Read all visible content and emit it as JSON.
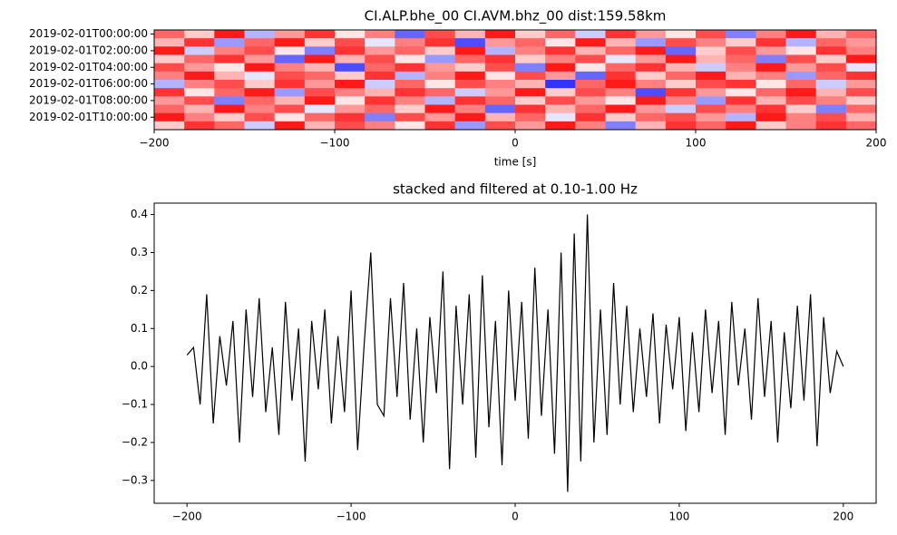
{
  "chart_data": [
    {
      "type": "heatmap",
      "title": "CI.ALP.bhe_00 CI.AVM.bhz_00  dist:159.58km",
      "xlabel": "time [s]",
      "xlim": [
        -200,
        200
      ],
      "xticks": [
        {
          "value": -200,
          "label": "−200"
        },
        {
          "value": -100,
          "label": "−100"
        },
        0,
        100,
        200
      ],
      "ylim": [
        11.5,
        -0.5
      ],
      "yticks": [
        {
          "value": 0,
          "label": "2019-02-01T00:00:00"
        },
        {
          "value": 2,
          "label": "2019-02-01T02:00:00"
        },
        {
          "value": 4,
          "label": "2019-02-01T04:00:00"
        },
        {
          "value": 6,
          "label": "2019-02-01T06:00:00"
        },
        {
          "value": 8,
          "label": "2019-02-01T08:00:00"
        },
        {
          "value": 10,
          "label": "2019-02-01T10:00:00"
        }
      ],
      "colormap": "bwr",
      "clim": [
        -1,
        1
      ],
      "z": [
        [
          0.6,
          0.2,
          0.9,
          -0.3,
          0.4,
          0.8,
          0.1,
          0.5,
          -0.6,
          0.7,
          0.3,
          0.9,
          0.2,
          0.6,
          -0.2,
          0.8,
          0.4,
          0.1,
          0.7,
          -0.5,
          0.5,
          0.9,
          0.3,
          0.6
        ],
        [
          0.3,
          0.8,
          -0.4,
          0.6,
          0.9,
          0.2,
          0.7,
          -0.1,
          0.5,
          0.8,
          -0.7,
          0.4,
          0.6,
          0.1,
          0.9,
          0.3,
          -0.4,
          0.7,
          0.5,
          0.2,
          0.8,
          -0.3,
          0.6,
          0.4
        ],
        [
          0.9,
          -0.2,
          0.5,
          0.7,
          0.1,
          -0.5,
          0.8,
          0.4,
          0.6,
          0.2,
          0.9,
          -0.3,
          0.5,
          0.8,
          0.3,
          0.6,
          0.9,
          -0.6,
          0.2,
          0.7,
          0.4,
          0.1,
          0.8,
          0.5
        ],
        [
          0.2,
          0.6,
          0.8,
          0.4,
          -0.6,
          0.9,
          0.3,
          0.7,
          0.1,
          -0.4,
          0.6,
          0.8,
          0.2,
          0.5,
          0.7,
          -0.1,
          0.4,
          0.9,
          0.3,
          0.6,
          -0.5,
          0.7,
          0.2,
          0.9
        ],
        [
          0.7,
          0.4,
          0.1,
          0.9,
          0.5,
          0.3,
          -0.7,
          0.6,
          0.8,
          0.4,
          0.2,
          0.7,
          -0.5,
          0.9,
          0.1,
          0.6,
          0.8,
          0.3,
          -0.2,
          0.5,
          0.9,
          0.4,
          0.7,
          -0.1
        ],
        [
          0.5,
          0.9,
          0.3,
          -0.1,
          0.7,
          0.6,
          0.2,
          0.8,
          -0.3,
          0.5,
          0.9,
          0.1,
          0.7,
          0.4,
          -0.6,
          0.8,
          0.2,
          0.6,
          0.9,
          0.3,
          0.5,
          -0.4,
          0.6,
          0.8
        ],
        [
          -0.3,
          0.5,
          0.7,
          0.2,
          0.8,
          0.4,
          0.9,
          -0.2,
          0.6,
          0.1,
          0.7,
          0.5,
          0.3,
          -0.8,
          0.6,
          0.9,
          0.5,
          0.2,
          0.7,
          0.8,
          0.1,
          0.6,
          -0.2,
          0.4
        ],
        [
          0.8,
          0.1,
          0.6,
          0.9,
          -0.4,
          0.7,
          0.5,
          0.3,
          0.8,
          0.6,
          -0.2,
          0.4,
          0.9,
          0.2,
          0.7,
          0.5,
          -0.7,
          0.8,
          0.4,
          0.1,
          0.6,
          0.9,
          0.3,
          0.7
        ],
        [
          0.4,
          0.7,
          -0.5,
          0.6,
          0.3,
          0.9,
          0.1,
          0.8,
          0.5,
          -0.3,
          0.8,
          0.6,
          0.2,
          0.7,
          0.4,
          0.1,
          0.9,
          0.5,
          -0.4,
          0.8,
          0.3,
          0.7,
          0.5,
          0.2
        ],
        [
          0.6,
          0.3,
          0.9,
          0.5,
          0.7,
          -0.1,
          0.4,
          0.6,
          0.2,
          0.9,
          0.5,
          -0.6,
          0.8,
          0.3,
          0.6,
          0.9,
          0.4,
          -0.2,
          0.7,
          0.5,
          0.8,
          0.2,
          -0.5,
          0.6
        ],
        [
          0.9,
          0.5,
          0.2,
          0.7,
          0.1,
          0.6,
          0.8,
          -0.5,
          0.7,
          0.4,
          0.9,
          0.3,
          0.6,
          -0.1,
          0.8,
          0.2,
          0.6,
          0.7,
          0.4,
          -0.3,
          0.9,
          0.5,
          0.7,
          0.3
        ],
        [
          0.2,
          0.8,
          0.6,
          -0.2,
          0.9,
          0.3,
          0.7,
          0.5,
          0.1,
          0.8,
          -0.4,
          0.7,
          0.4,
          0.9,
          0.5,
          -0.5,
          0.3,
          0.8,
          0.6,
          0.9,
          0.2,
          0.5,
          0.8,
          0.6
        ]
      ]
    },
    {
      "type": "line",
      "title": "stacked and filtered at 0.10-1.00 Hz",
      "xlim": [
        -220,
        220
      ],
      "xticks": [
        {
          "value": -200,
          "label": "−200"
        },
        {
          "value": -100,
          "label": "−100"
        },
        0,
        100,
        200
      ],
      "ylim": [
        -0.36,
        0.43
      ],
      "yticks": [
        {
          "value": -0.3,
          "label": "−0.3"
        },
        {
          "value": -0.2,
          "label": "−0.2"
        },
        {
          "value": -0.1,
          "label": "−0.1"
        },
        {
          "value": 0,
          "label": "0.0"
        },
        0.1,
        0.2,
        0.3,
        0.4
      ],
      "x": [
        -200,
        -196,
        -192,
        -188,
        -184,
        -180,
        -176,
        -172,
        -168,
        -164,
        -160,
        -156,
        -152,
        -148,
        -144,
        -140,
        -136,
        -132,
        -128,
        -124,
        -120,
        -116,
        -112,
        -108,
        -104,
        -100,
        -96,
        -92,
        -88,
        -84,
        -80,
        -76,
        -72,
        -68,
        -64,
        -60,
        -56,
        -52,
        -48,
        -44,
        -40,
        -36,
        -32,
        -28,
        -24,
        -20,
        -16,
        -12,
        -8,
        -4,
        0,
        4,
        8,
        12,
        16,
        20,
        24,
        28,
        32,
        36,
        40,
        44,
        48,
        52,
        56,
        60,
        64,
        68,
        72,
        76,
        80,
        84,
        88,
        92,
        96,
        100,
        104,
        108,
        112,
        116,
        120,
        124,
        128,
        132,
        136,
        140,
        144,
        148,
        152,
        156,
        160,
        164,
        168,
        172,
        176,
        180,
        184,
        188,
        192,
        196,
        200
      ],
      "series": [
        {
          "color": "#000000",
          "values": [
            0.03,
            0.05,
            -0.1,
            0.19,
            -0.15,
            0.08,
            -0.05,
            0.12,
            -0.2,
            0.15,
            -0.08,
            0.18,
            -0.12,
            0.05,
            -0.18,
            0.17,
            -0.09,
            0.1,
            -0.25,
            0.12,
            -0.06,
            0.15,
            -0.15,
            0.08,
            -0.12,
            0.2,
            -0.22,
            0.06,
            0.3,
            -0.1,
            -0.13,
            0.18,
            -0.08,
            0.22,
            -0.14,
            0.1,
            -0.2,
            0.13,
            -0.07,
            0.25,
            -0.27,
            0.16,
            -0.1,
            0.19,
            -0.24,
            0.24,
            -0.16,
            0.12,
            -0.26,
            0.2,
            -0.09,
            0.17,
            -0.19,
            0.26,
            -0.13,
            0.15,
            -0.23,
            0.3,
            -0.33,
            0.35,
            -0.25,
            0.4,
            -0.2,
            0.15,
            -0.18,
            0.22,
            -0.1,
            0.16,
            -0.12,
            0.1,
            -0.08,
            0.14,
            -0.15,
            0.11,
            -0.06,
            0.13,
            -0.17,
            0.09,
            -0.12,
            0.15,
            -0.07,
            0.12,
            -0.18,
            0.17,
            -0.05,
            0.1,
            -0.14,
            0.18,
            -0.08,
            0.12,
            -0.2,
            0.09,
            -0.11,
            0.16,
            -0.09,
            0.19,
            -0.21,
            0.13,
            -0.07,
            0.04,
            0.0
          ]
        }
      ]
    }
  ]
}
